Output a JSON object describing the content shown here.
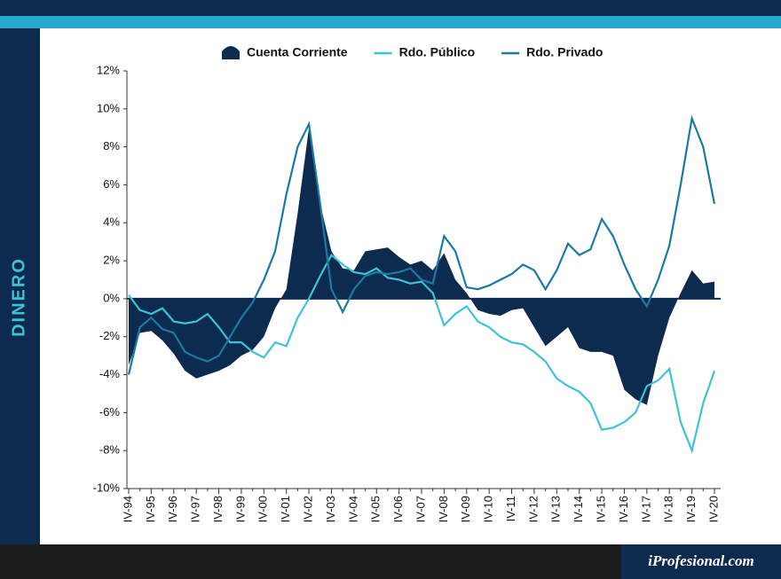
{
  "section": "DINERO",
  "brand": "iProfesional.com",
  "chart_data": {
    "type": "line",
    "legend": "top",
    "categories": [
      "IV-94",
      null,
      "IV-95",
      null,
      "IV-96",
      null,
      "IV-97",
      null,
      "IV-98",
      null,
      "IV-99",
      null,
      "IV-00",
      null,
      "IV-01",
      null,
      "IV-02",
      null,
      "IV-03",
      null,
      "IV-04",
      null,
      "IV-05",
      null,
      "IV-06",
      null,
      "IV-07",
      null,
      "IV-08",
      null,
      "IV-09",
      null,
      "IV-10",
      null,
      "IV-11",
      null,
      "IV-12",
      null,
      "IV-13",
      null,
      "IV-14",
      null,
      "IV-15",
      null,
      "IV-16",
      null,
      "IV-17",
      null,
      "IV-18",
      null,
      "IV-19",
      null,
      "IV-20"
    ],
    "ylim": [
      -10,
      12
    ],
    "yticks": [
      {
        "value": -10,
        "label": "-10%"
      },
      {
        "value": -8,
        "label": "-8%"
      },
      {
        "value": -6,
        "label": "-6%"
      },
      {
        "value": -4,
        "label": "-4%"
      },
      {
        "value": -2,
        "label": "-2%"
      },
      {
        "value": 0,
        "label": "0%"
      },
      {
        "value": 2,
        "label": "2%"
      },
      {
        "value": 4,
        "label": "4%"
      },
      {
        "value": 6,
        "label": "6%"
      },
      {
        "value": 8,
        "label": "8%"
      },
      {
        "value": 10,
        "label": "10%"
      },
      {
        "value": 12,
        "label": "12%"
      }
    ],
    "series": [
      {
        "name": "Cuenta Corriente",
        "style": "area",
        "color": "#0d2b4e",
        "values": [
          -3.5,
          -1.8,
          -1.7,
          -2.2,
          -2.9,
          -3.8,
          -4.2,
          -4.0,
          -3.8,
          -3.5,
          -3.0,
          -2.7,
          -2.0,
          -0.5,
          0.5,
          4.5,
          9.0,
          5.0,
          2.5,
          1.6,
          1.5,
          2.5,
          2.6,
          2.7,
          2.2,
          1.8,
          2.0,
          1.5,
          2.4,
          1.0,
          0.3,
          -0.6,
          -0.8,
          -0.9,
          -0.6,
          -0.5,
          -1.5,
          -2.5,
          -2.0,
          -1.5,
          -2.6,
          -2.8,
          -2.8,
          -3.0,
          -4.8,
          -5.3,
          -5.6,
          -3.0,
          -1.0,
          0.3,
          1.5,
          0.8,
          0.9
        ]
      },
      {
        "name": "Rdo. Público",
        "style": "line",
        "color": "#3fc1d8",
        "values": [
          0.2,
          -0.6,
          -0.8,
          -0.5,
          -1.2,
          -1.3,
          -1.2,
          -0.8,
          -1.5,
          -2.3,
          -2.3,
          -2.8,
          -3.1,
          -2.3,
          -2.5,
          -1.0,
          0.0,
          1.2,
          2.3,
          1.8,
          1.4,
          1.3,
          1.6,
          1.1,
          1.0,
          0.8,
          0.9,
          0.3,
          -1.4,
          -0.8,
          -0.4,
          -1.2,
          -1.5,
          -2.0,
          -2.3,
          -2.4,
          -2.8,
          -3.3,
          -4.2,
          -4.6,
          -4.9,
          -5.5,
          -6.9,
          -6.8,
          -6.5,
          -6.0,
          -4.6,
          -4.3,
          -3.7,
          -6.5,
          -8.0,
          -5.5,
          -3.8
        ]
      },
      {
        "name": "Rdo. Privado",
        "style": "line",
        "color": "#1a7aa3",
        "values": [
          -4.0,
          -1.5,
          -1.0,
          -1.6,
          -1.8,
          -2.8,
          -3.1,
          -3.3,
          -3.0,
          -2.0,
          -1.0,
          -0.2,
          1.0,
          2.5,
          5.5,
          8.0,
          9.2,
          5.0,
          0.5,
          -0.7,
          0.5,
          1.2,
          1.4,
          1.3,
          1.4,
          1.6,
          1.0,
          0.8,
          3.3,
          2.5,
          0.6,
          0.5,
          0.7,
          1.0,
          1.3,
          1.8,
          1.5,
          0.5,
          1.5,
          2.9,
          2.3,
          2.6,
          4.2,
          3.3,
          1.8,
          0.5,
          -0.4,
          1.0,
          2.8,
          6.0,
          9.5,
          8.0,
          5.0
        ]
      }
    ]
  }
}
